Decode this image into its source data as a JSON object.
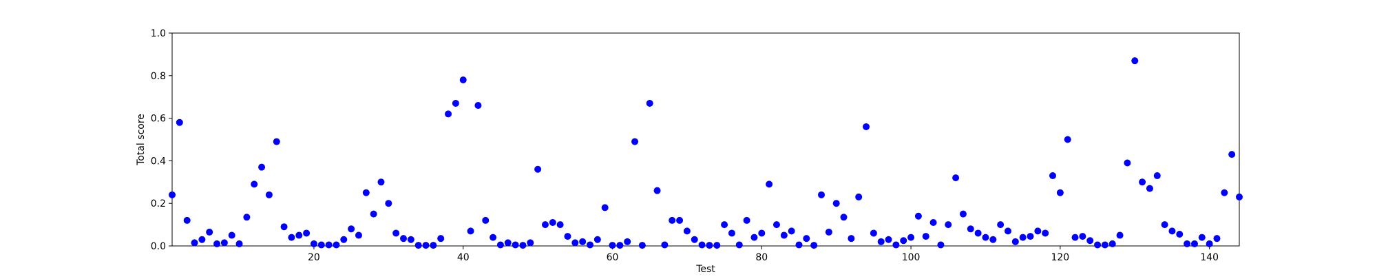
{
  "chart_data": {
    "type": "scatter",
    "title": "",
    "xlabel": "Test",
    "ylabel": "Total score",
    "xlim": [
      1,
      144
    ],
    "ylim": [
      0,
      1.0
    ],
    "grid": false,
    "legend": "none",
    "color": "#0000ff",
    "xticks": [
      20,
      40,
      60,
      80,
      100,
      120,
      140
    ],
    "yticks": [
      0.0,
      0.2,
      0.4,
      0.6,
      0.8,
      1.0
    ],
    "xtick_labels": [
      "20",
      "40",
      "60",
      "80",
      "100",
      "120",
      "140"
    ],
    "ytick_labels": [
      "0.0",
      "0.2",
      "0.4",
      "0.6",
      "0.8",
      "1.0"
    ],
    "series": [
      {
        "x": [
          1,
          2,
          3,
          4,
          5,
          6,
          7,
          8,
          9,
          10,
          11,
          12,
          13,
          14,
          15,
          16,
          17,
          18,
          19,
          20,
          21,
          22,
          23,
          24,
          25,
          26,
          27,
          28,
          29,
          30,
          31,
          32,
          33,
          34,
          35,
          36,
          37,
          38,
          39,
          40,
          41,
          42,
          43,
          44,
          45,
          46,
          47,
          48,
          49,
          50,
          51,
          52,
          53,
          54,
          55,
          56,
          57,
          58,
          59,
          60,
          61,
          62,
          63,
          64,
          65,
          66,
          67,
          68,
          69,
          70,
          71,
          72,
          73,
          74,
          75,
          76,
          77,
          78,
          79,
          80,
          81,
          82,
          83,
          84,
          85,
          86,
          87,
          88,
          89,
          90,
          91,
          92,
          93,
          94,
          95,
          96,
          97,
          98,
          99,
          100,
          101,
          102,
          103,
          104,
          105,
          106,
          107,
          108,
          109,
          110,
          111,
          112,
          113,
          114,
          115,
          116,
          117,
          118,
          119,
          120,
          121,
          122,
          123,
          124,
          125,
          126,
          127,
          128,
          129,
          130,
          131,
          132,
          133,
          134,
          135,
          136,
          137,
          138,
          139,
          140,
          141,
          142,
          143,
          144
        ],
        "y": [
          0.24,
          0.58,
          0.12,
          0.015,
          0.03,
          0.065,
          0.01,
          0.015,
          0.05,
          0.01,
          0.135,
          0.29,
          0.37,
          0.24,
          0.49,
          0.09,
          0.04,
          0.05,
          0.06,
          0.01,
          0.005,
          0.005,
          0.005,
          0.03,
          0.08,
          0.05,
          0.25,
          0.15,
          0.3,
          0.2,
          0.06,
          0.035,
          0.03,
          0.003,
          0.003,
          0.003,
          0.035,
          0.62,
          0.67,
          0.78,
          0.07,
          0.66,
          0.12,
          0.04,
          0.005,
          0.015,
          0.005,
          0.003,
          0.015,
          0.36,
          0.1,
          0.11,
          0.1,
          0.045,
          0.015,
          0.02,
          0.005,
          0.03,
          0.18,
          0.003,
          0.003,
          0.02,
          0.49,
          0.003,
          0.67,
          0.26,
          0.005,
          0.12,
          0.12,
          0.07,
          0.03,
          0.005,
          0.003,
          0.003,
          0.1,
          0.06,
          0.005,
          0.12,
          0.04,
          0.06,
          0.29,
          0.1,
          0.05,
          0.07,
          0.005,
          0.035,
          0.003,
          0.24,
          0.065,
          0.2,
          0.135,
          0.035,
          0.23,
          0.56,
          0.06,
          0.02,
          0.03,
          0.005,
          0.025,
          0.04,
          0.14,
          0.045,
          0.11,
          0.005,
          0.1,
          0.32,
          0.15,
          0.08,
          0.06,
          0.04,
          0.03,
          0.1,
          0.07,
          0.02,
          0.04,
          0.045,
          0.07,
          0.06,
          0.33,
          0.25,
          0.5,
          0.04,
          0.045,
          0.025,
          0.005,
          0.005,
          0.01,
          0.05,
          0.39,
          0.87,
          0.3,
          0.27,
          0.33,
          0.1,
          0.07,
          0.055,
          0.01,
          0.01,
          0.04,
          0.01,
          0.035,
          0.25,
          0.43,
          0.23
        ]
      }
    ]
  }
}
